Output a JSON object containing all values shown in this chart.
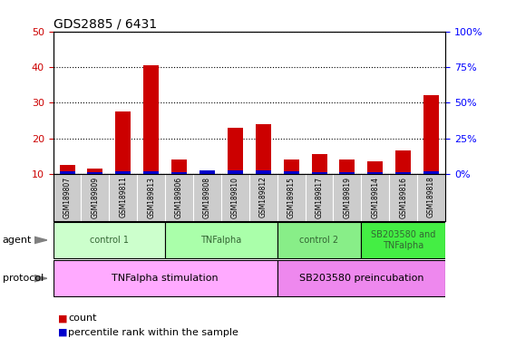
{
  "title": "GDS2885 / 6431",
  "samples": [
    "GSM189807",
    "GSM189809",
    "GSM189811",
    "GSM189813",
    "GSM189806",
    "GSM189808",
    "GSM189810",
    "GSM189812",
    "GSM189815",
    "GSM189817",
    "GSM189819",
    "GSM189814",
    "GSM189816",
    "GSM189818"
  ],
  "count_values": [
    12.5,
    11.5,
    27.5,
    40.5,
    14.0,
    10.5,
    23.0,
    24.0,
    14.0,
    15.5,
    14.0,
    13.5,
    16.5,
    32.0
  ],
  "percentile_values_pct": [
    2.0,
    1.5,
    2.0,
    2.0,
    1.5,
    2.5,
    2.5,
    2.5,
    2.0,
    1.5,
    1.5,
    1.5,
    1.5,
    2.0
  ],
  "ylim_left": [
    10,
    50
  ],
  "ylim_right": [
    0,
    100
  ],
  "yticks_left": [
    10,
    20,
    30,
    40,
    50
  ],
  "yticks_right": [
    0,
    25,
    50,
    75,
    100
  ],
  "ytick_labels_right": [
    "0%",
    "25%",
    "50%",
    "75%",
    "100%"
  ],
  "bar_width": 0.55,
  "count_color": "#cc0000",
  "percentile_color": "#0000cc",
  "agent_groups": [
    {
      "label": "control 1",
      "start": 0,
      "end": 3,
      "color": "#ccffcc"
    },
    {
      "label": "TNFalpha",
      "start": 4,
      "end": 7,
      "color": "#aaffaa"
    },
    {
      "label": "control 2",
      "start": 8,
      "end": 10,
      "color": "#88ee88"
    },
    {
      "label": "SB203580 and\nTNFalpha",
      "start": 11,
      "end": 13,
      "color": "#44ee44"
    }
  ],
  "protocol_groups": [
    {
      "label": "TNFalpha stimulation",
      "start": 0,
      "end": 7,
      "color": "#ffaaff"
    },
    {
      "label": "SB203580 preincubation",
      "start": 8,
      "end": 13,
      "color": "#ee88ee"
    }
  ],
  "grid_color": "#000000",
  "background_color": "#ffffff",
  "title_fontsize": 10,
  "tick_fontsize": 8,
  "label_fontsize": 8,
  "agent_label_color": "#336633",
  "protocol_label_color": "#000000"
}
